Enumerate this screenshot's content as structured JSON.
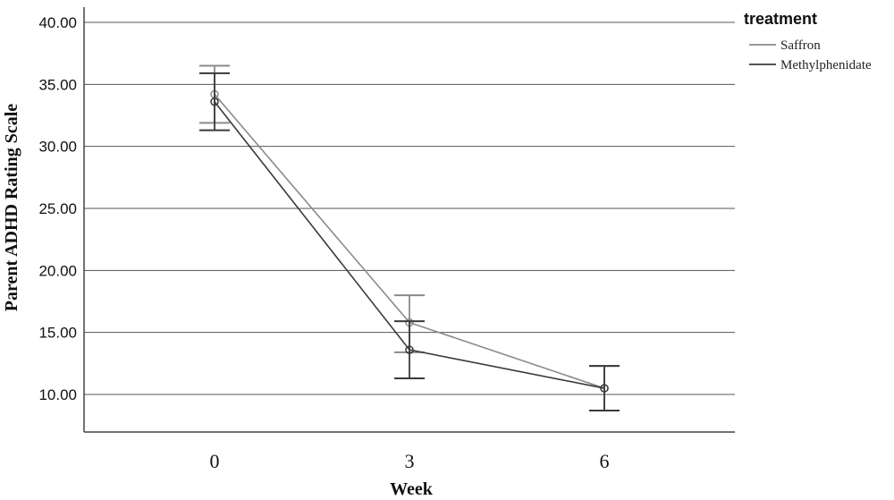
{
  "chart_data": {
    "type": "line",
    "xlabel": "Week",
    "ylabel": "Parent ADHD Rating Scale",
    "x": [
      "0",
      "3",
      "6"
    ],
    "ylim": [
      7,
      40
    ],
    "yticks": [
      "40.00",
      "35.00",
      "30.00",
      "25.00",
      "20.00",
      "15.00",
      "10.00"
    ],
    "grid": true,
    "legend": {
      "title": "treatment",
      "position": "top-right"
    },
    "series": [
      {
        "name": "Saffron",
        "color": "#8a8a8a",
        "values": [
          34.2,
          15.8,
          10.5
        ],
        "error_low": [
          31.9,
          13.4,
          8.7
        ],
        "error_high": [
          36.5,
          18.0,
          12.3
        ]
      },
      {
        "name": "Methylphenidate",
        "color": "#3a3a3a",
        "values": [
          33.6,
          13.6,
          10.5
        ],
        "error_low": [
          31.3,
          11.3,
          8.7
        ],
        "error_high": [
          35.9,
          15.9,
          12.3
        ]
      }
    ]
  }
}
